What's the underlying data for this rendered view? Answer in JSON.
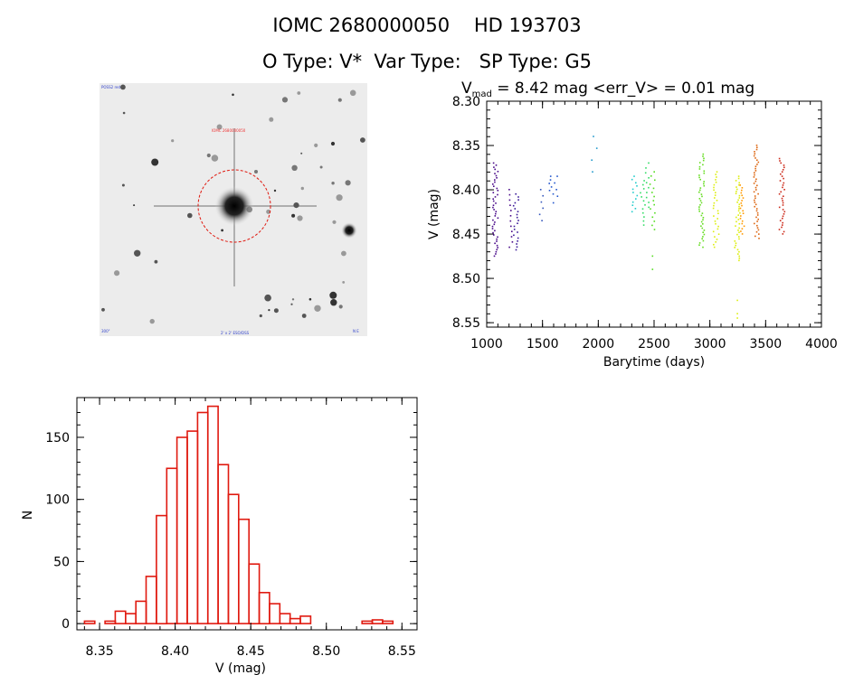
{
  "header": {
    "line1": "IOMC 2680000050    HD 193703",
    "line2": "O Type: V*  Var Type:   SP Type: G5"
  },
  "thumbnail": {
    "label_top_left": "POSS2 red",
    "label_target": "IOMC 2680000050",
    "label_bottom_left": "300\"",
    "label_bottom_center": "2' x 2' ESO/DSS",
    "label_bottom_right": "N E"
  },
  "colors": {
    "hist_bar": "#e01a10",
    "circle": "#e01a10",
    "seasons": [
      "#4a0a8a",
      "#3a1a9a",
      "#3355bb",
      "#2255cc",
      "#2299cc",
      "#22cccc",
      "#33dd66",
      "#55dd22",
      "#66dd22",
      "#ddee11",
      "#ff9900",
      "#dd6611",
      "#cc2a1a"
    ]
  },
  "chart_data": [
    {
      "type": "scatter",
      "title_parts": {
        "v": "V",
        "sub": "mad",
        "rest": " = 8.42 mag <err_V> = 0.01 mag"
      },
      "xlabel": "Barytime (days)",
      "ylabel": "V (mag)",
      "xlim": [
        1000,
        4000
      ],
      "ylim": [
        8.3,
        8.555
      ],
      "y_inverted": true,
      "xticks": [
        1000,
        1500,
        2000,
        2500,
        3000,
        3500,
        4000
      ],
      "yticks": [
        "8.30",
        "8.35",
        "8.40",
        "8.45",
        "8.50",
        "8.55"
      ],
      "seasons": [
        {
          "x": 1070,
          "ymin": 8.37,
          "ymax": 8.475,
          "n": 45,
          "extra": []
        },
        {
          "x": 1200,
          "ymin": 8.4,
          "ymax": 8.465,
          "n": 12,
          "extra": []
        },
        {
          "x": 1255,
          "ymin": 8.405,
          "ymax": 8.468,
          "n": 20,
          "extra": []
        },
        {
          "x": 1480,
          "ymin": 8.4,
          "ymax": 8.435,
          "n": 6,
          "extra": []
        },
        {
          "x": 1570,
          "ymin": 8.385,
          "ymax": 8.405,
          "n": 6,
          "extra": []
        },
        {
          "x": 1610,
          "ymin": 8.385,
          "ymax": 8.415,
          "n": 5,
          "extra": []
        },
        {
          "x": 1960,
          "ymin": 8.34,
          "ymax": 8.38,
          "n": 4,
          "extra": []
        },
        {
          "x": 2320,
          "ymin": 8.385,
          "ymax": 8.425,
          "n": 12,
          "extra": []
        },
        {
          "x": 2390,
          "ymin": 8.39,
          "ymax": 8.44,
          "n": 12,
          "extra": []
        },
        {
          "x": 2440,
          "ymin": 8.37,
          "ymax": 8.42,
          "n": 10,
          "extra": []
        },
        {
          "x": 2480,
          "ymin": 8.38,
          "ymax": 8.445,
          "n": 15,
          "extra": [
            8.475,
            8.49
          ]
        },
        {
          "x": 2920,
          "ymin": 8.36,
          "ymax": 8.465,
          "n": 45,
          "extra": []
        },
        {
          "x": 3050,
          "ymin": 8.38,
          "ymax": 8.465,
          "n": 30,
          "extra": []
        },
        {
          "x": 3240,
          "ymin": 8.385,
          "ymax": 8.48,
          "n": 40,
          "extra": [
            8.525,
            8.54,
            8.545
          ]
        },
        {
          "x": 3280,
          "ymin": 8.395,
          "ymax": 8.45,
          "n": 20,
          "extra": []
        },
        {
          "x": 3410,
          "ymin": 8.35,
          "ymax": 8.455,
          "n": 45,
          "extra": []
        },
        {
          "x": 3640,
          "ymin": 8.365,
          "ymax": 8.45,
          "n": 35,
          "extra": []
        }
      ]
    },
    {
      "type": "bar",
      "subtype": "histogram",
      "xlabel": "V (mag)",
      "ylabel": "N",
      "xlim": [
        8.335,
        8.56
      ],
      "ylim": [
        -5,
        182
      ],
      "xticks": [
        "8.35",
        "8.40",
        "8.45",
        "8.50",
        "8.55"
      ],
      "yticks": [
        0,
        50,
        100,
        150
      ],
      "bin_start": 8.34,
      "bin_width": 0.0068,
      "counts": [
        2,
        0,
        2,
        10,
        8,
        18,
        38,
        87,
        125,
        150,
        155,
        170,
        175,
        128,
        104,
        84,
        48,
        25,
        16,
        8,
        4,
        6,
        0,
        0,
        0,
        0,
        0,
        2,
        3,
        2
      ]
    }
  ]
}
